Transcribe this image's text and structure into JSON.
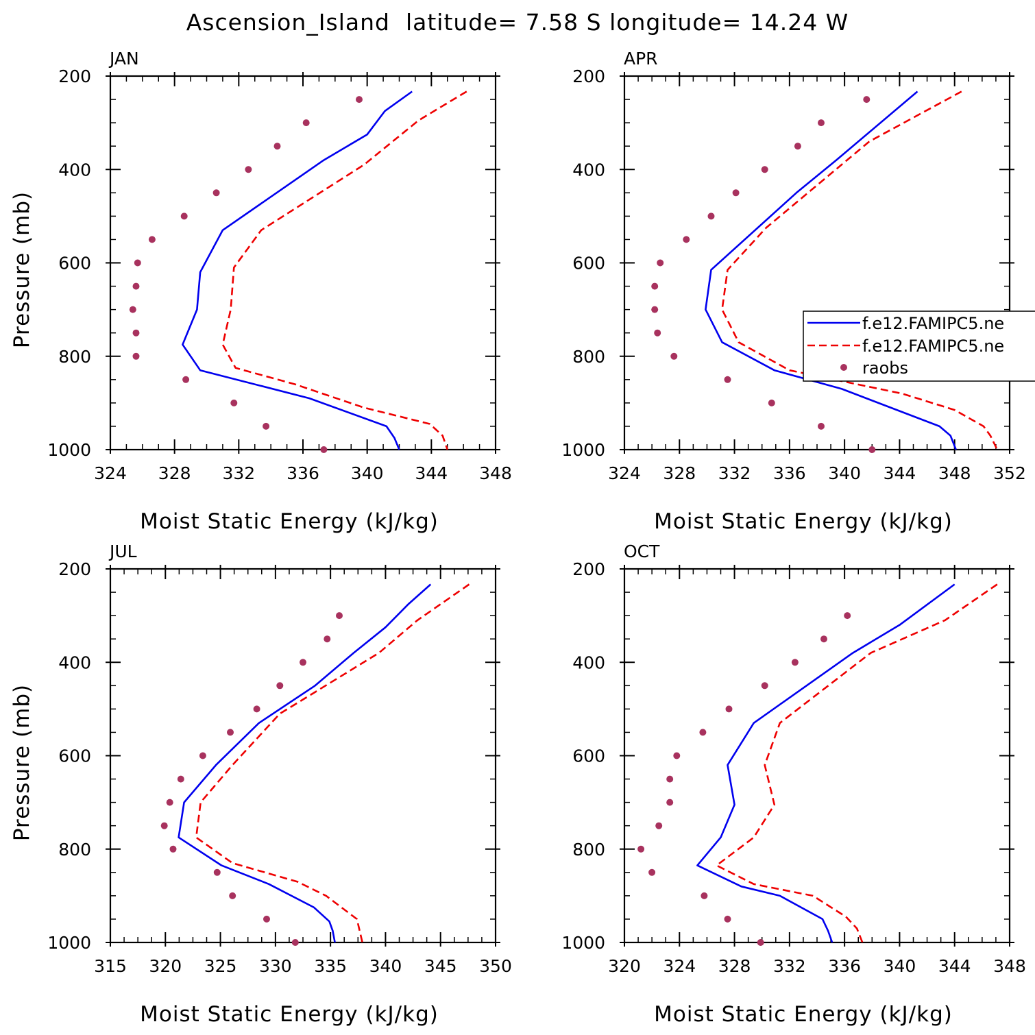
{
  "title": "Ascension_Island  latitude= 7.58 S longitude= 14.24 W",
  "colors": {
    "model_a": "#0000ee",
    "model_b": "#ee0000",
    "raobs": "#a8325e"
  },
  "legend": {
    "entries": [
      "f.e12.FAMIPC5.ne",
      "f.e12.FAMIPC5.ne",
      "raobs"
    ]
  },
  "chart_data": [
    {
      "type": "line",
      "panel": "JAN",
      "xlabel": "Moist Static Energy (kJ/kg)",
      "ylabel": "Pressure (mb)",
      "xlim": [
        324,
        348
      ],
      "xticks": [
        324,
        328,
        332,
        336,
        340,
        344,
        348
      ],
      "ylim": [
        1000,
        200
      ],
      "yticks": [
        200,
        400,
        600,
        800,
        1000
      ],
      "series": [
        {
          "name": "f.e12.FAMIPC5.ne",
          "style": "solid",
          "x": [
            342.8,
            341.1,
            340.0,
            337.3,
            331.0,
            329.6,
            329.4,
            328.5,
            329.6,
            336.4,
            341.2,
            341.7,
            342.0
          ],
          "y": [
            233,
            275,
            325,
            380,
            530,
            620,
            700,
            775,
            830,
            890,
            950,
            975,
            1000
          ]
        },
        {
          "name": "f.e12.FAMIPC5.ne",
          "style": "dashed",
          "x": [
            346.2,
            343.2,
            339.8,
            333.4,
            331.7,
            331.5,
            331.0,
            331.8,
            335.5,
            339.8,
            343.9,
            344.7,
            345.0
          ],
          "y": [
            233,
            295,
            390,
            530,
            610,
            700,
            775,
            825,
            860,
            910,
            945,
            970,
            1000
          ]
        },
        {
          "name": "raobs",
          "style": "dots",
          "x": [
            339.5,
            336.2,
            334.4,
            332.6,
            330.6,
            328.6,
            326.6,
            325.7,
            325.6,
            325.4,
            325.6,
            325.6,
            328.7,
            331.7,
            333.7,
            337.3
          ],
          "y": [
            250,
            300,
            350,
            400,
            450,
            500,
            550,
            600,
            650,
            700,
            750,
            800,
            850,
            900,
            950,
            1000
          ]
        }
      ]
    },
    {
      "type": "line",
      "panel": "APR",
      "xlabel": "Moist Static Energy (kJ/kg)",
      "ylabel": "Pressure (mb)",
      "xlim": [
        324,
        352
      ],
      "xticks": [
        324,
        328,
        332,
        336,
        340,
        344,
        348,
        352
      ],
      "ylim": [
        1000,
        200
      ],
      "yticks": [
        200,
        400,
        600,
        800,
        1000
      ],
      "series": [
        {
          "name": "f.e12.FAMIPC5.ne",
          "style": "solid",
          "x": [
            345.3,
            339.4,
            336.5,
            330.3,
            329.9,
            331.1,
            334.9,
            339.8,
            346.9,
            347.7,
            348.1
          ],
          "y": [
            233,
            380,
            450,
            615,
            700,
            770,
            830,
            870,
            950,
            970,
            1000
          ]
        },
        {
          "name": "f.e12.FAMIPC5.ne",
          "style": "dashed",
          "x": [
            348.5,
            341.8,
            334.3,
            331.5,
            331.1,
            332.3,
            336.0,
            344.2,
            348.0,
            350.1,
            350.6,
            351.1
          ],
          "y": [
            233,
            340,
            525,
            615,
            700,
            770,
            830,
            880,
            915,
            950,
            970,
            1000
          ]
        },
        {
          "name": "raobs",
          "style": "dots",
          "x": [
            341.6,
            338.3,
            336.6,
            334.2,
            332.1,
            330.3,
            328.5,
            326.6,
            326.2,
            326.2,
            326.4,
            327.6,
            331.5,
            334.7,
            338.3,
            342.0
          ],
          "y": [
            250,
            300,
            350,
            400,
            450,
            500,
            550,
            600,
            650,
            700,
            750,
            800,
            850,
            900,
            950,
            1000
          ]
        }
      ]
    },
    {
      "type": "line",
      "panel": "JUL",
      "xlabel": "Moist Static Energy (kJ/kg)",
      "ylabel": "Pressure (mb)",
      "xlim": [
        315,
        350
      ],
      "xticks": [
        315,
        320,
        325,
        330,
        335,
        340,
        345,
        350
      ],
      "ylim": [
        1000,
        200
      ],
      "yticks": [
        200,
        400,
        600,
        800,
        1000
      ],
      "series": [
        {
          "name": "f.e12.FAMIPC5.ne",
          "style": "solid",
          "x": [
            344.1,
            342.1,
            340.0,
            337.1,
            333.6,
            328.5,
            324.6,
            321.7,
            321.2,
            325.1,
            329.4,
            333.5,
            334.9,
            335.2,
            335.4
          ],
          "y": [
            233,
            275,
            325,
            380,
            450,
            530,
            620,
            700,
            775,
            835,
            875,
            925,
            955,
            975,
            1000
          ]
        },
        {
          "name": "f.e12.FAMIPC5.ne",
          "style": "dashed",
          "x": [
            347.6,
            342.9,
            339.4,
            330.4,
            326.1,
            323.2,
            322.8,
            326.1,
            332.0,
            334.6,
            337.4,
            337.9
          ],
          "y": [
            233,
            310,
            380,
            510,
            620,
            700,
            775,
            830,
            870,
            900,
            950,
            1000
          ]
        },
        {
          "name": "raobs",
          "style": "dots",
          "x": [
            335.8,
            334.7,
            332.5,
            330.4,
            328.3,
            325.9,
            323.4,
            321.4,
            320.4,
            319.9,
            320.7,
            324.7,
            326.1,
            329.2,
            331.8
          ],
          "y": [
            300,
            350,
            400,
            450,
            500,
            550,
            600,
            650,
            700,
            750,
            800,
            850,
            900,
            950,
            1000
          ]
        }
      ]
    },
    {
      "type": "line",
      "panel": "OCT",
      "xlabel": "Moist Static Energy (kJ/kg)",
      "ylabel": "Pressure (mb)",
      "xlim": [
        320,
        348
      ],
      "xticks": [
        320,
        324,
        328,
        332,
        336,
        340,
        344,
        348
      ],
      "ylim": [
        1000,
        200
      ],
      "yticks": [
        200,
        400,
        600,
        800,
        1000
      ],
      "series": [
        {
          "name": "f.e12.FAMIPC5.ne",
          "style": "solid",
          "x": [
            344.0,
            340.0,
            336.6,
            329.4,
            327.5,
            328.0,
            327.0,
            325.3,
            328.5,
            331.3,
            334.4,
            334.8,
            335.1
          ],
          "y": [
            233,
            320,
            380,
            530,
            620,
            705,
            775,
            835,
            880,
            900,
            950,
            975,
            1000
          ]
        },
        {
          "name": "f.e12.FAMIPC5.ne",
          "style": "dashed",
          "x": [
            347.1,
            343.3,
            337.9,
            331.3,
            330.2,
            330.9,
            329.4,
            326.7,
            329.4,
            333.7,
            336.1,
            336.9,
            337.3
          ],
          "y": [
            233,
            310,
            380,
            530,
            620,
            705,
            775,
            835,
            875,
            900,
            945,
            970,
            1000
          ]
        },
        {
          "name": "raobs",
          "style": "dots",
          "x": [
            336.2,
            334.5,
            332.4,
            330.2,
            327.6,
            325.7,
            323.8,
            323.3,
            323.3,
            322.5,
            321.2,
            322.0,
            325.8,
            327.5,
            329.9
          ],
          "y": [
            300,
            350,
            400,
            450,
            500,
            550,
            600,
            650,
            700,
            750,
            800,
            850,
            900,
            950,
            1000
          ]
        }
      ]
    }
  ]
}
